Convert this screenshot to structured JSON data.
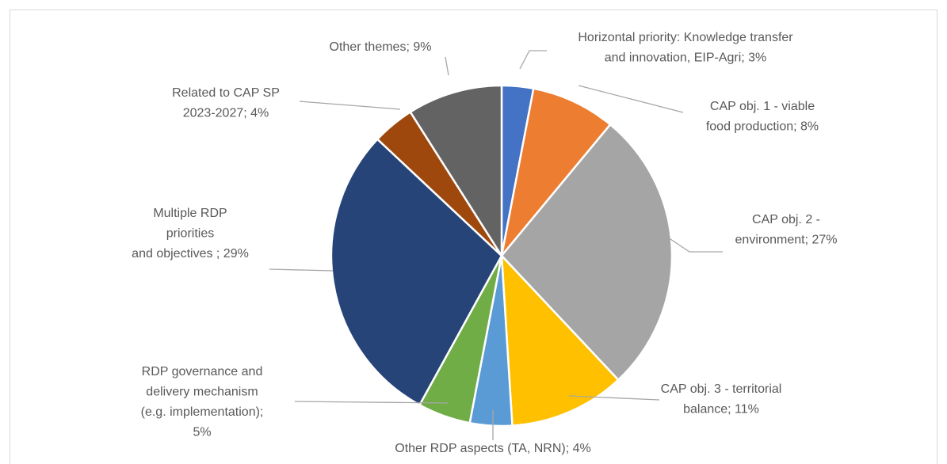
{
  "chart_data": {
    "type": "pie",
    "labels": [
      [
        "Horizontal priority: Knowledge transfer",
        "and innovation, EIP-Agri; 3%"
      ],
      [
        "CAP obj. 1 - viable",
        "food production; 8%"
      ],
      [
        "CAP obj. 2 -",
        "environment; 27%"
      ],
      [
        "CAP obj. 3 - territorial",
        "balance; 11%"
      ],
      [
        "Other RDP aspects (TA, NRN); 4%"
      ],
      [
        "RDP governance and",
        "delivery mechanism",
        "(e.g. implementation);",
        "5%"
      ],
      [
        "Multiple RDP",
        "priorities",
        "and objectives ; 29%"
      ],
      [
        "Related to CAP SP",
        "2023-2027; 4%"
      ],
      [
        "Other themes; 9%"
      ]
    ],
    "values": [
      3,
      8,
      27,
      11,
      4,
      5,
      29,
      4,
      9
    ],
    "colors": [
      "#4472c4",
      "#ed7d31",
      "#a5a5a5",
      "#ffc000",
      "#5b9bd5",
      "#70ad47",
      "#264478",
      "#9e480e",
      "#636363"
    ]
  }
}
